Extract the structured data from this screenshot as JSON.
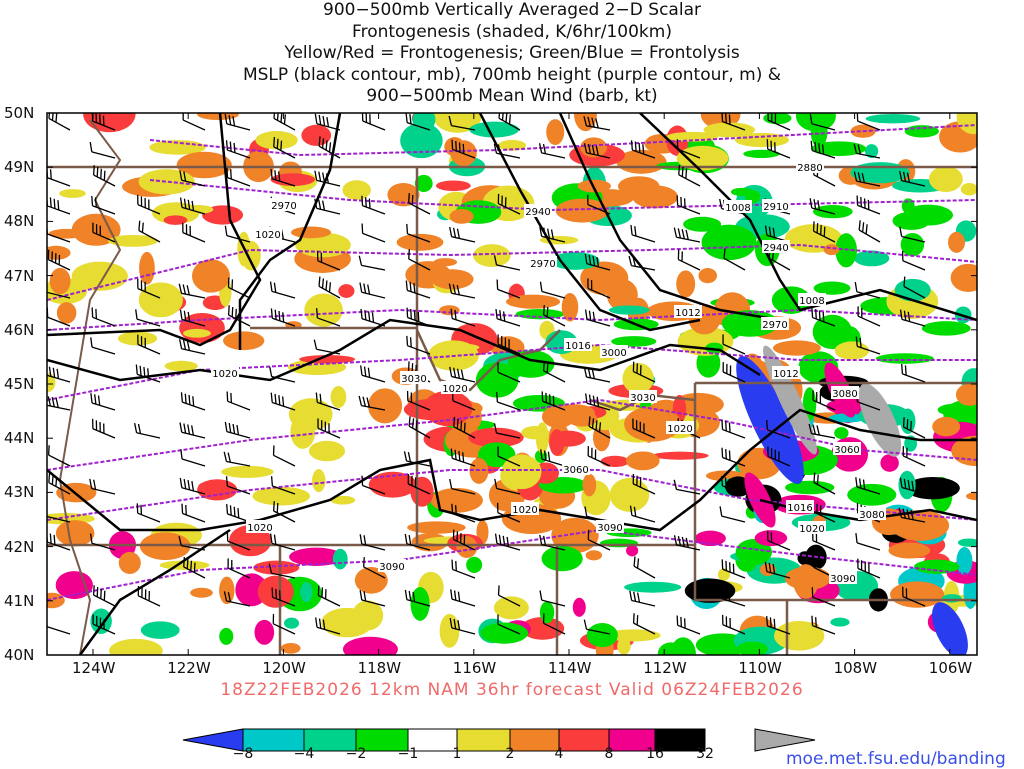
{
  "title": {
    "lines": [
      "900−500mb Vertically Averaged 2−D Scalar",
      "Frontogenesis (shaded, K/6hr/100km)",
      "Yellow/Red = Frontogenesis;  Green/Blue = Frontolysis",
      "MSLP (black contour, mb), 700mb height (purple contour, m) &",
      "900−500mb Mean Wind (barb, kt)"
    ]
  },
  "axes": {
    "lat_labels": [
      "50N",
      "49N",
      "48N",
      "47N",
      "46N",
      "45N",
      "44N",
      "43N",
      "42N",
      "41N",
      "40N"
    ],
    "lon_labels": [
      "124W",
      "122W",
      "120W",
      "118W",
      "116W",
      "114W",
      "112W",
      "110W",
      "108W",
      "106W"
    ]
  },
  "footer": "18Z22FEB2026  12km  NAM  36hr  forecast  Valid  06Z24FEB2026",
  "colorbar": {
    "labels": [
      "−8",
      "−4",
      "−2",
      "−1",
      "1",
      "2",
      "4",
      "8",
      "16",
      "32"
    ],
    "colors": [
      "#2a3cf0",
      "#00c8c8",
      "#00d28c",
      "#00dc00",
      "#ffffff",
      "#e6dc32",
      "#f08228",
      "#fa3c3c",
      "#f0008c",
      "#000000",
      "#aaaaaa"
    ]
  },
  "url": "moe.met.fsu.edu/banding",
  "mslp_labels": [
    "1020",
    "1020",
    "1020",
    "1016",
    "1012",
    "1008",
    "1008",
    "1012",
    "1020",
    "1020",
    "1016",
    "1020",
    "1020"
  ],
  "height_labels": [
    "2880",
    "2910",
    "2940",
    "2940",
    "2970",
    "2970",
    "2970",
    "3000",
    "3030",
    "3030",
    "3060",
    "3060",
    "3090",
    "3090",
    "3080",
    "3080",
    "3090"
  ]
}
